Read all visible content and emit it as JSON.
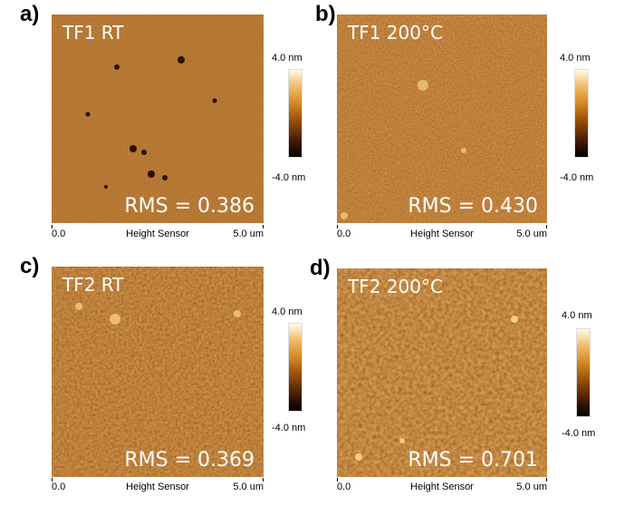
{
  "panels": [
    {
      "letter": "a)",
      "title": "TF1 RT",
      "rms": "RMS = 0.386",
      "axis_min": "0.0",
      "axis_name": "Height Sensor",
      "axis_max": "5.0 um",
      "scale_max": "4.0 nm",
      "scale_min": "-4.0 nm"
    },
    {
      "letter": "b)",
      "title": "TF1 200°C",
      "rms": "RMS = 0.430",
      "axis_min": "0.0",
      "axis_name": "Height Sensor",
      "axis_max": "5.0 um",
      "scale_max": "4.0 nm",
      "scale_min": "-4.0 nm"
    },
    {
      "letter": "c)",
      "title": "TF2 RT",
      "rms": "RMS = 0.369",
      "axis_min": "0.0",
      "axis_name": "Height Sensor",
      "axis_max": "5.0 um",
      "scale_max": "4.0 nm",
      "scale_min": "-4.0 nm"
    },
    {
      "letter": "d)",
      "title": "TF2 200°C",
      "rms": "RMS = 0.701",
      "axis_min": "0.0",
      "axis_name": "Height Sensor",
      "axis_max": "5.0 um",
      "scale_max": "4.0 nm",
      "scale_min": "-4.0 nm"
    }
  ],
  "colors": {
    "afm_base": "#a65b16",
    "afm_dark": "#4a1f03",
    "afm_light": "#f2c27a"
  }
}
